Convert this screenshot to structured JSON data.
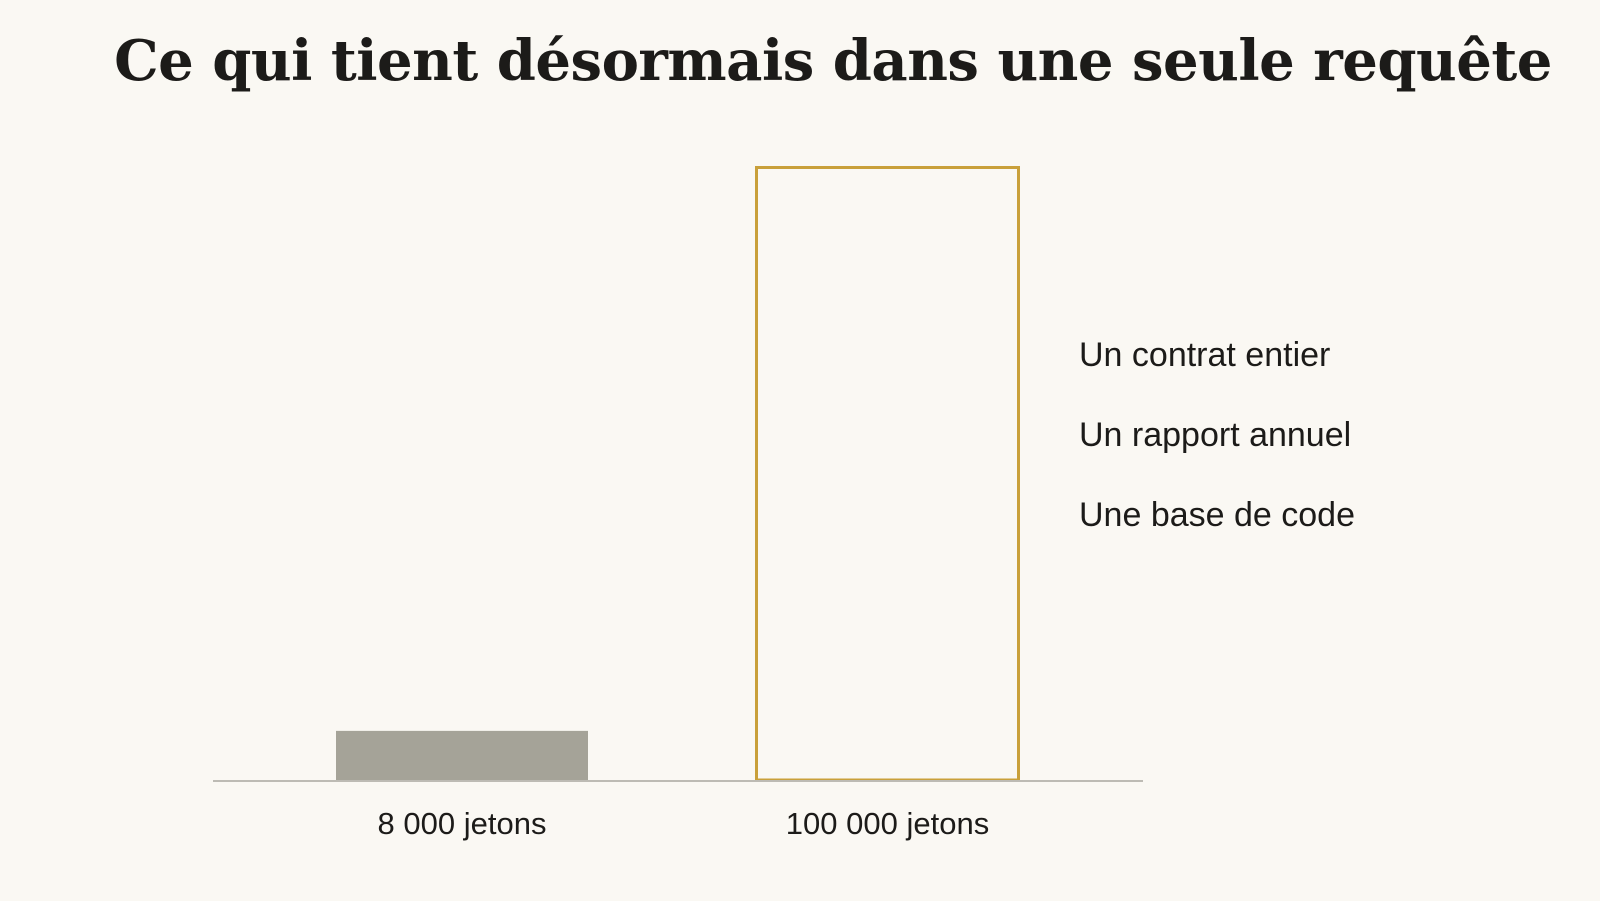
{
  "title": "Ce qui tient désormais dans une seule requête",
  "colors": {
    "background": "#faf8f3",
    "small_bar_fill": "#a5a398",
    "large_bar_stroke": "#c9a03a",
    "baseline": "#bdbbb4",
    "text": "#1c1b19"
  },
  "chart_data": {
    "type": "bar",
    "title": "Ce qui tient désormais dans une seule requête",
    "xlabel": "",
    "ylabel": "",
    "categories": [
      "8 000 jetons",
      "100 000 jetons"
    ],
    "values": [
      8000,
      100000
    ],
    "ylim": [
      0,
      100000
    ],
    "grid": false,
    "annotations": [
      "Un contrat entier",
      "Un rapport annuel",
      "Une base de code"
    ]
  }
}
